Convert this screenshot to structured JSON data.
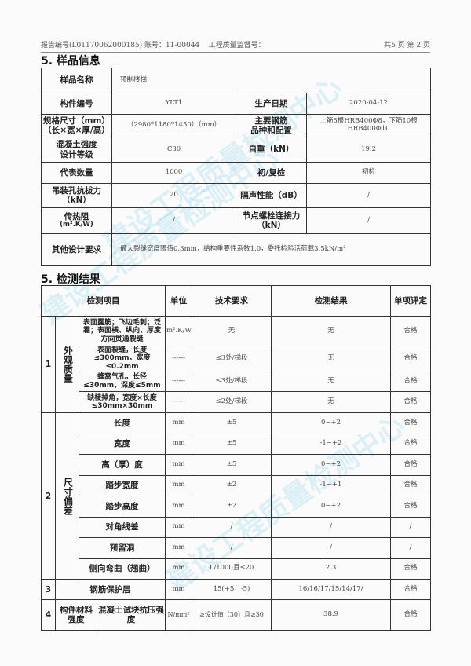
{
  "header": {
    "report_no": "报告编号(L01170062000185)",
    "account_no": "账号：11-00044",
    "supervision_no": "工程质量监督号：",
    "page": "共5 页 第 2 页"
  },
  "watermark": "建设工程质量检测中心",
  "sample_info": {
    "title": "5. 样品信息",
    "name_label": "样品名称",
    "name": "预制楼梯",
    "code_label": "构件编号",
    "code": "YLT1",
    "date_label": "生产日期",
    "date": "2020-04-12",
    "size_label1": "规格尺寸（mm）",
    "size_label2": "（长×宽×厚/高）",
    "size": "（2980*1180*1450）（mm）",
    "rebar_label1": "主要钢筋",
    "rebar_label2": "品种和配置",
    "rebar1": "上筋5根HRB400Φ8，下筋10根",
    "rebar2": "HRB400Φ10",
    "concrete_label1": "混凝土强度",
    "concrete_label2": "设计等级",
    "concrete": "C30",
    "weight_label": "自重（kN）",
    "weight": "19.2",
    "qty_label": "代表数量",
    "qty": "1000",
    "check_label": "初/复检",
    "check": "初检",
    "pull_label1": "吊装孔抗拔力",
    "pull_label2": "（kN）",
    "pull": "20",
    "sound_label": "隔声性能（dB）",
    "sound": "/",
    "heat_label1": "传热阻",
    "heat_label2": "(m².K/W)",
    "heat": "/",
    "bolt_label1": "节点螺栓连接力",
    "bolt_label2": "（kN）",
    "bolt": "/",
    "other_label": "其他设计要求",
    "other": "最大裂缝宽度限值0.3mm，结构重要性系数1.0，委托检验活荷载3.5kN/m²"
  },
  "results": {
    "title": "5. 检测结果",
    "headers": [
      "检测项目",
      "单位",
      "技术要求",
      "检测结果",
      "单项评定"
    ],
    "g1": {
      "no": "1",
      "name": "外观质量",
      "rows": [
        {
          "item": "表面露筋；飞边毛刺；泛霜；表面横、纵向、厚度方向贯通裂缝",
          "unit": "m².K/W",
          "req": "无",
          "res": "无",
          "ok": "合格"
        },
        {
          "item": "表面裂缝，长度≤300mm，宽度≤0.2mm",
          "unit": "------",
          "req": "≤3处/梯段",
          "res": "无",
          "ok": "合格"
        },
        {
          "item": "蜂窝气孔，长径≤30mm，深度≤5mm",
          "unit": "------",
          "req": "≤3处/梯段",
          "res": "无",
          "ok": "合格"
        },
        {
          "item": "缺棱掉角，宽度×长度≤30mm×30mm",
          "unit": "------",
          "req": "≤2处/梯段",
          "res": "无",
          "ok": "合格"
        }
      ]
    },
    "g2": {
      "no": "2",
      "name": "尺寸偏差",
      "rows": [
        {
          "item": "长度",
          "unit": "mm",
          "req": "±5",
          "res": "0~+2",
          "ok": "合格"
        },
        {
          "item": "宽度",
          "unit": "mm",
          "req": "±5",
          "res": "-1~+2",
          "ok": "合格"
        },
        {
          "item": "高（厚）度",
          "unit": "mm",
          "req": "±5",
          "res": "0~+2",
          "ok": "合格"
        },
        {
          "item": "踏步宽度",
          "unit": "mm",
          "req": "±2",
          "res": "-1~+1",
          "ok": "合格"
        },
        {
          "item": "踏步高度",
          "unit": "mm",
          "req": "±2",
          "res": "0~+2",
          "ok": "合格"
        },
        {
          "item": "对角线差",
          "unit": "mm",
          "req": "/",
          "res": "/",
          "ok": "/"
        },
        {
          "item": "预留洞",
          "unit": "mm",
          "req": "/",
          "res": "/",
          "ok": "/"
        },
        {
          "item": "侧向弯曲（翘曲）",
          "unit": "mm",
          "req": "L/1000且≤20",
          "res": "2.3",
          "ok": "合格"
        }
      ]
    },
    "g3": {
      "no": "3",
      "item": "钢筋保护层",
      "unit": "mm",
      "req": "15(+5，-5)",
      "res": "16/16/17/15/14/17/",
      "ok": "合格"
    },
    "g4": {
      "no": "4",
      "name": "构件材料强度",
      "item": "混凝土试块抗压强度",
      "unit": "N/mm²",
      "req": "≥设计值（30）且≥30",
      "res": "38.9",
      "ok": "合格"
    }
  }
}
